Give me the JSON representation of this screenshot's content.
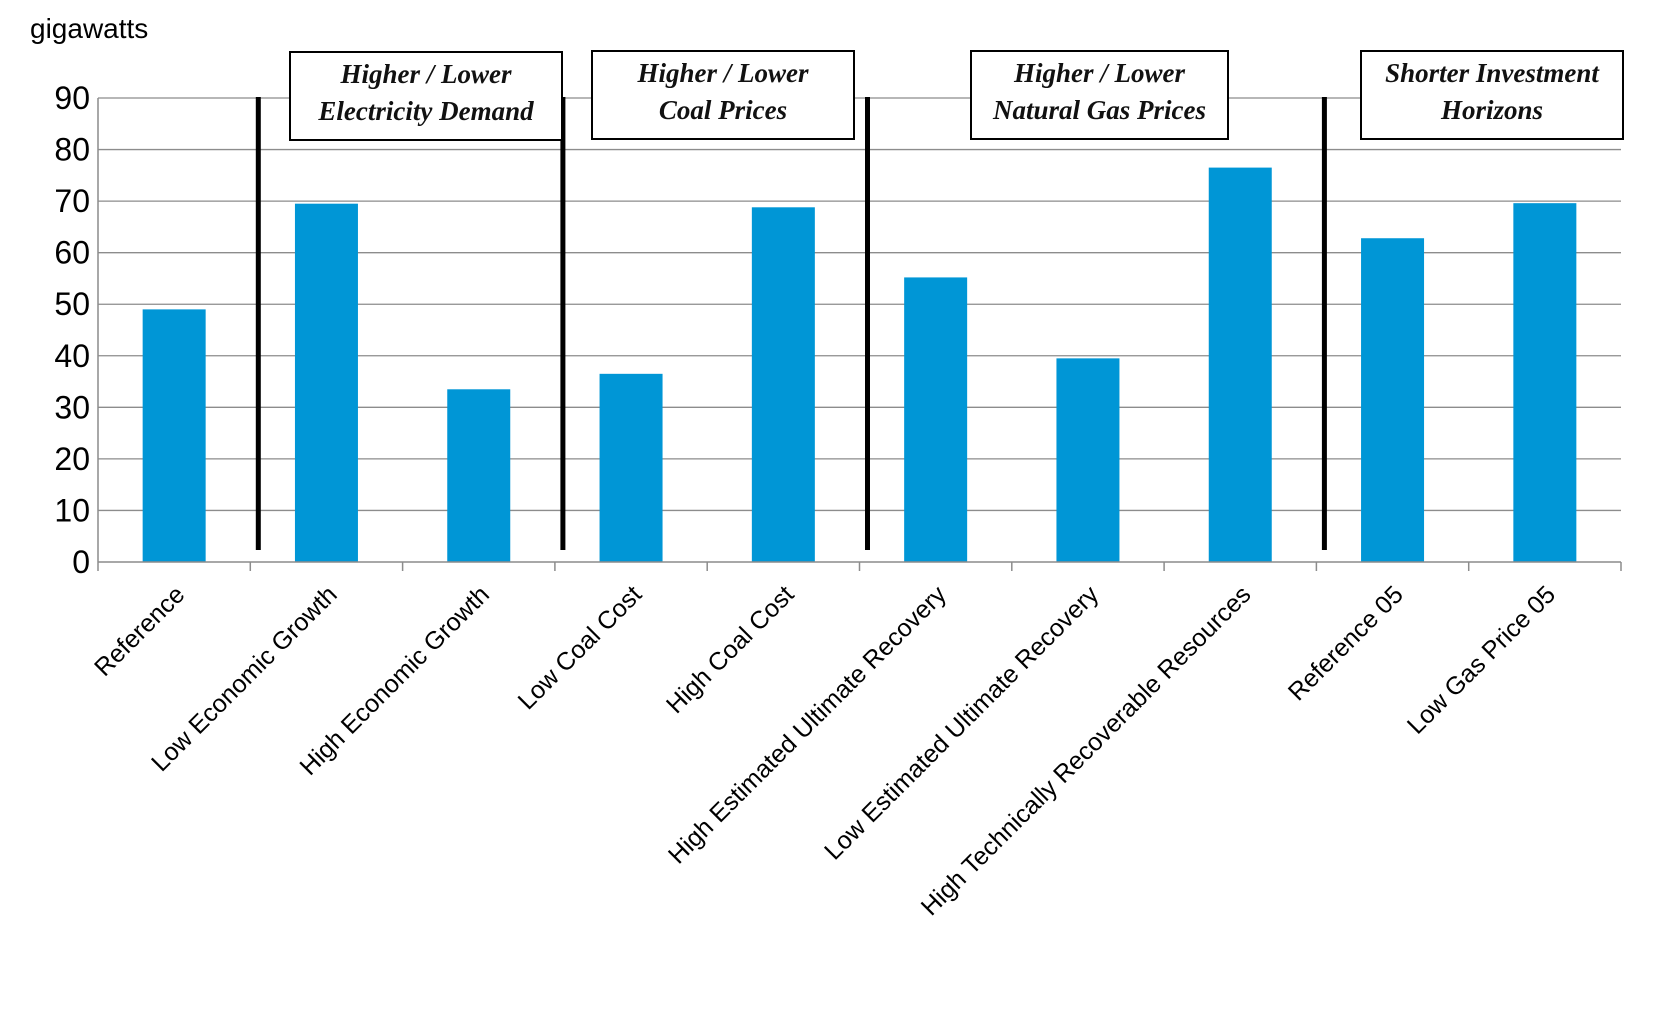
{
  "chart_data": {
    "type": "bar",
    "ylabel": "gigawatts",
    "ylim": [
      0,
      90
    ],
    "yticks": [
      0,
      10,
      20,
      30,
      40,
      50,
      60,
      70,
      80,
      90
    ],
    "grid": true,
    "categories": [
      "Reference",
      "Low Economic Growth",
      "High Economic Growth",
      "Low Coal Cost",
      "High Coal Cost",
      "High Estimated Ultimate Recovery",
      "Low Estimated Ultimate Recovery",
      "High Technically Recoverable Resources",
      "Reference 05",
      "Low Gas Price 05"
    ],
    "values": [
      49,
      69.5,
      33.5,
      36.5,
      68.8,
      55.2,
      39.5,
      76.5,
      62.8,
      69.6
    ],
    "bar_color": "#0096D6",
    "groups": [
      {
        "lines": [
          "Higher / Lower",
          "Electricity Demand"
        ]
      },
      {
        "lines": [
          "Higher / Lower",
          "Coal Prices"
        ]
      },
      {
        "lines": [
          "Higher / Lower",
          "Natural Gas Prices"
        ]
      },
      {
        "lines": [
          "Shorter Investment",
          "Horizons"
        ]
      }
    ]
  }
}
